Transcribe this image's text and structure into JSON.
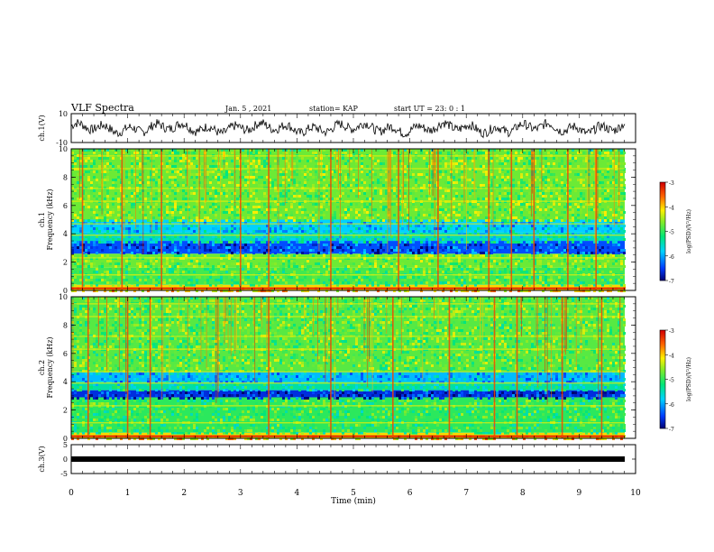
{
  "header": {
    "title": "VLF Spectra",
    "date": "Jan. 5 , 2021",
    "station": "station= KAP",
    "start": "start  UT  =   23: 0  : 1"
  },
  "chart_data": [
    {
      "type": "line",
      "name": "ch1-waveform",
      "ylabel": "ch.1(V)",
      "ylim": [
        -10,
        10
      ],
      "yticks": [
        "10",
        "-10"
      ],
      "xlim": [
        0,
        10
      ]
    },
    {
      "type": "heatmap",
      "name": "ch1-spectrogram",
      "ylabel_top": "ch.1",
      "ylabel": "Frequency (kHz)",
      "ylim": [
        0,
        10
      ],
      "yticks": [
        "0",
        "2",
        "4",
        "6",
        "8",
        "10"
      ],
      "xlim": [
        0,
        10
      ],
      "colorbar": {
        "label": "log(PSD)(V²/Hz)",
        "range": [
          -7,
          -3
        ],
        "ticks": [
          "-3",
          "-4",
          "-5",
          "-6",
          "-7"
        ]
      },
      "bands_khz": [
        {
          "from": 0,
          "to": 0.4,
          "level": -4
        },
        {
          "from": 0.4,
          "to": 1.6,
          "level": -4.9
        },
        {
          "from": 1.6,
          "to": 2.6,
          "level": -4.7
        },
        {
          "from": 2.6,
          "to": 3.5,
          "level": -6.4
        },
        {
          "from": 3.5,
          "to": 4.1,
          "level": -5.5
        },
        {
          "from": 4.1,
          "to": 5.0,
          "level": -5.8
        },
        {
          "from": 5.0,
          "to": 10,
          "level": -4.7
        }
      ],
      "spike_times_min": [
        0.2,
        0.9,
        1.6,
        3.0,
        3.5,
        4.6,
        5.8,
        6.5,
        7.4,
        7.8,
        8.2,
        8.8,
        9.3
      ]
    },
    {
      "type": "heatmap",
      "name": "ch2-spectrogram",
      "ylabel_top": "ch.2",
      "ylabel": "Frequency (kHz)",
      "ylim": [
        0,
        10
      ],
      "yticks": [
        "0",
        "2",
        "4",
        "6",
        "8",
        "10"
      ],
      "xlim": [
        0,
        10
      ],
      "colorbar": {
        "label": "log(PSD)(V²/Hz)",
        "range": [
          -7,
          -3
        ],
        "ticks": [
          "-3",
          "-4",
          "-5",
          "-6",
          "-7"
        ]
      },
      "bands_khz": [
        {
          "from": 0,
          "to": 0.4,
          "level": -4
        },
        {
          "from": 0.4,
          "to": 2.9,
          "level": -5.0
        },
        {
          "from": 2.9,
          "to": 3.4,
          "level": -6.6
        },
        {
          "from": 3.4,
          "to": 4.0,
          "level": -5.4
        },
        {
          "from": 4.0,
          "to": 4.7,
          "level": -5.9
        },
        {
          "from": 4.7,
          "to": 10,
          "level": -4.8
        }
      ],
      "spike_times_min": [
        0.3,
        1.0,
        1.4,
        3.5,
        4.6,
        5.7,
        6.7,
        7.5,
        7.9,
        8.7,
        9.4
      ]
    },
    {
      "type": "line",
      "name": "ch3-waveform",
      "ylabel": "ch.3(V)",
      "ylim": [
        -5,
        5
      ],
      "yticks": [
        "5",
        "0",
        "-5"
      ],
      "xlim": [
        0,
        10
      ],
      "xlabel": "Time  (min)",
      "xticks": [
        "0",
        "1",
        "2",
        "3",
        "4",
        "5",
        "6",
        "7",
        "8",
        "9",
        "10"
      ]
    }
  ]
}
